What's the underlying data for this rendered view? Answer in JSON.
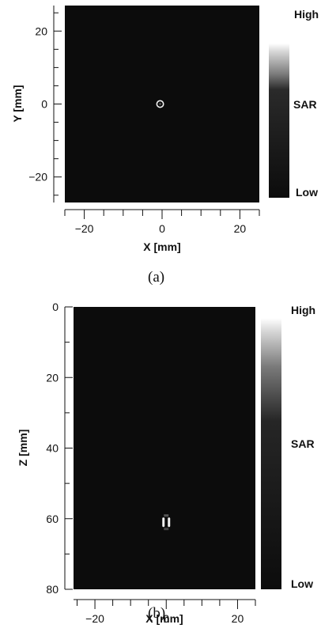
{
  "chart_data": [
    {
      "type": "heatmap",
      "panel_label": "(a)",
      "xlabel": "X [mm]",
      "ylabel": "Y [mm]",
      "xlim": [
        -25,
        25
      ],
      "ylim": [
        -27,
        27
      ],
      "x_ticks": [
        -20,
        0,
        20
      ],
      "y_ticks": [
        20,
        0,
        -20
      ],
      "hotspot": {
        "x": -0.5,
        "y": 0,
        "shape": "ring"
      },
      "colorbar": {
        "label": "SAR",
        "high_label": "High",
        "low_label": "Low",
        "dark_from_fraction": 0.72
      },
      "colors": {
        "background": "#0c0c0c",
        "hotspot": "#f2f2f2"
      }
    },
    {
      "type": "heatmap",
      "panel_label": "(b)",
      "xlabel": "X [mm]",
      "ylabel": "Z [mm]",
      "xlim": [
        -26,
        25
      ],
      "ylim": [
        0,
        80
      ],
      "y_inverted": true,
      "x_ticks": [
        -20,
        0,
        20
      ],
      "y_ticks": [
        0,
        20,
        40,
        60,
        80
      ],
      "hotspot": {
        "x": 0,
        "y": 61,
        "shape": "vertical-pair"
      },
      "colorbar": {
        "label": "SAR",
        "high_label": "High",
        "low_label": "Low",
        "dark_from_fraction": 0.62
      },
      "colors": {
        "background": "#0c0c0c",
        "hotspot": "#f2f2f2"
      }
    }
  ]
}
